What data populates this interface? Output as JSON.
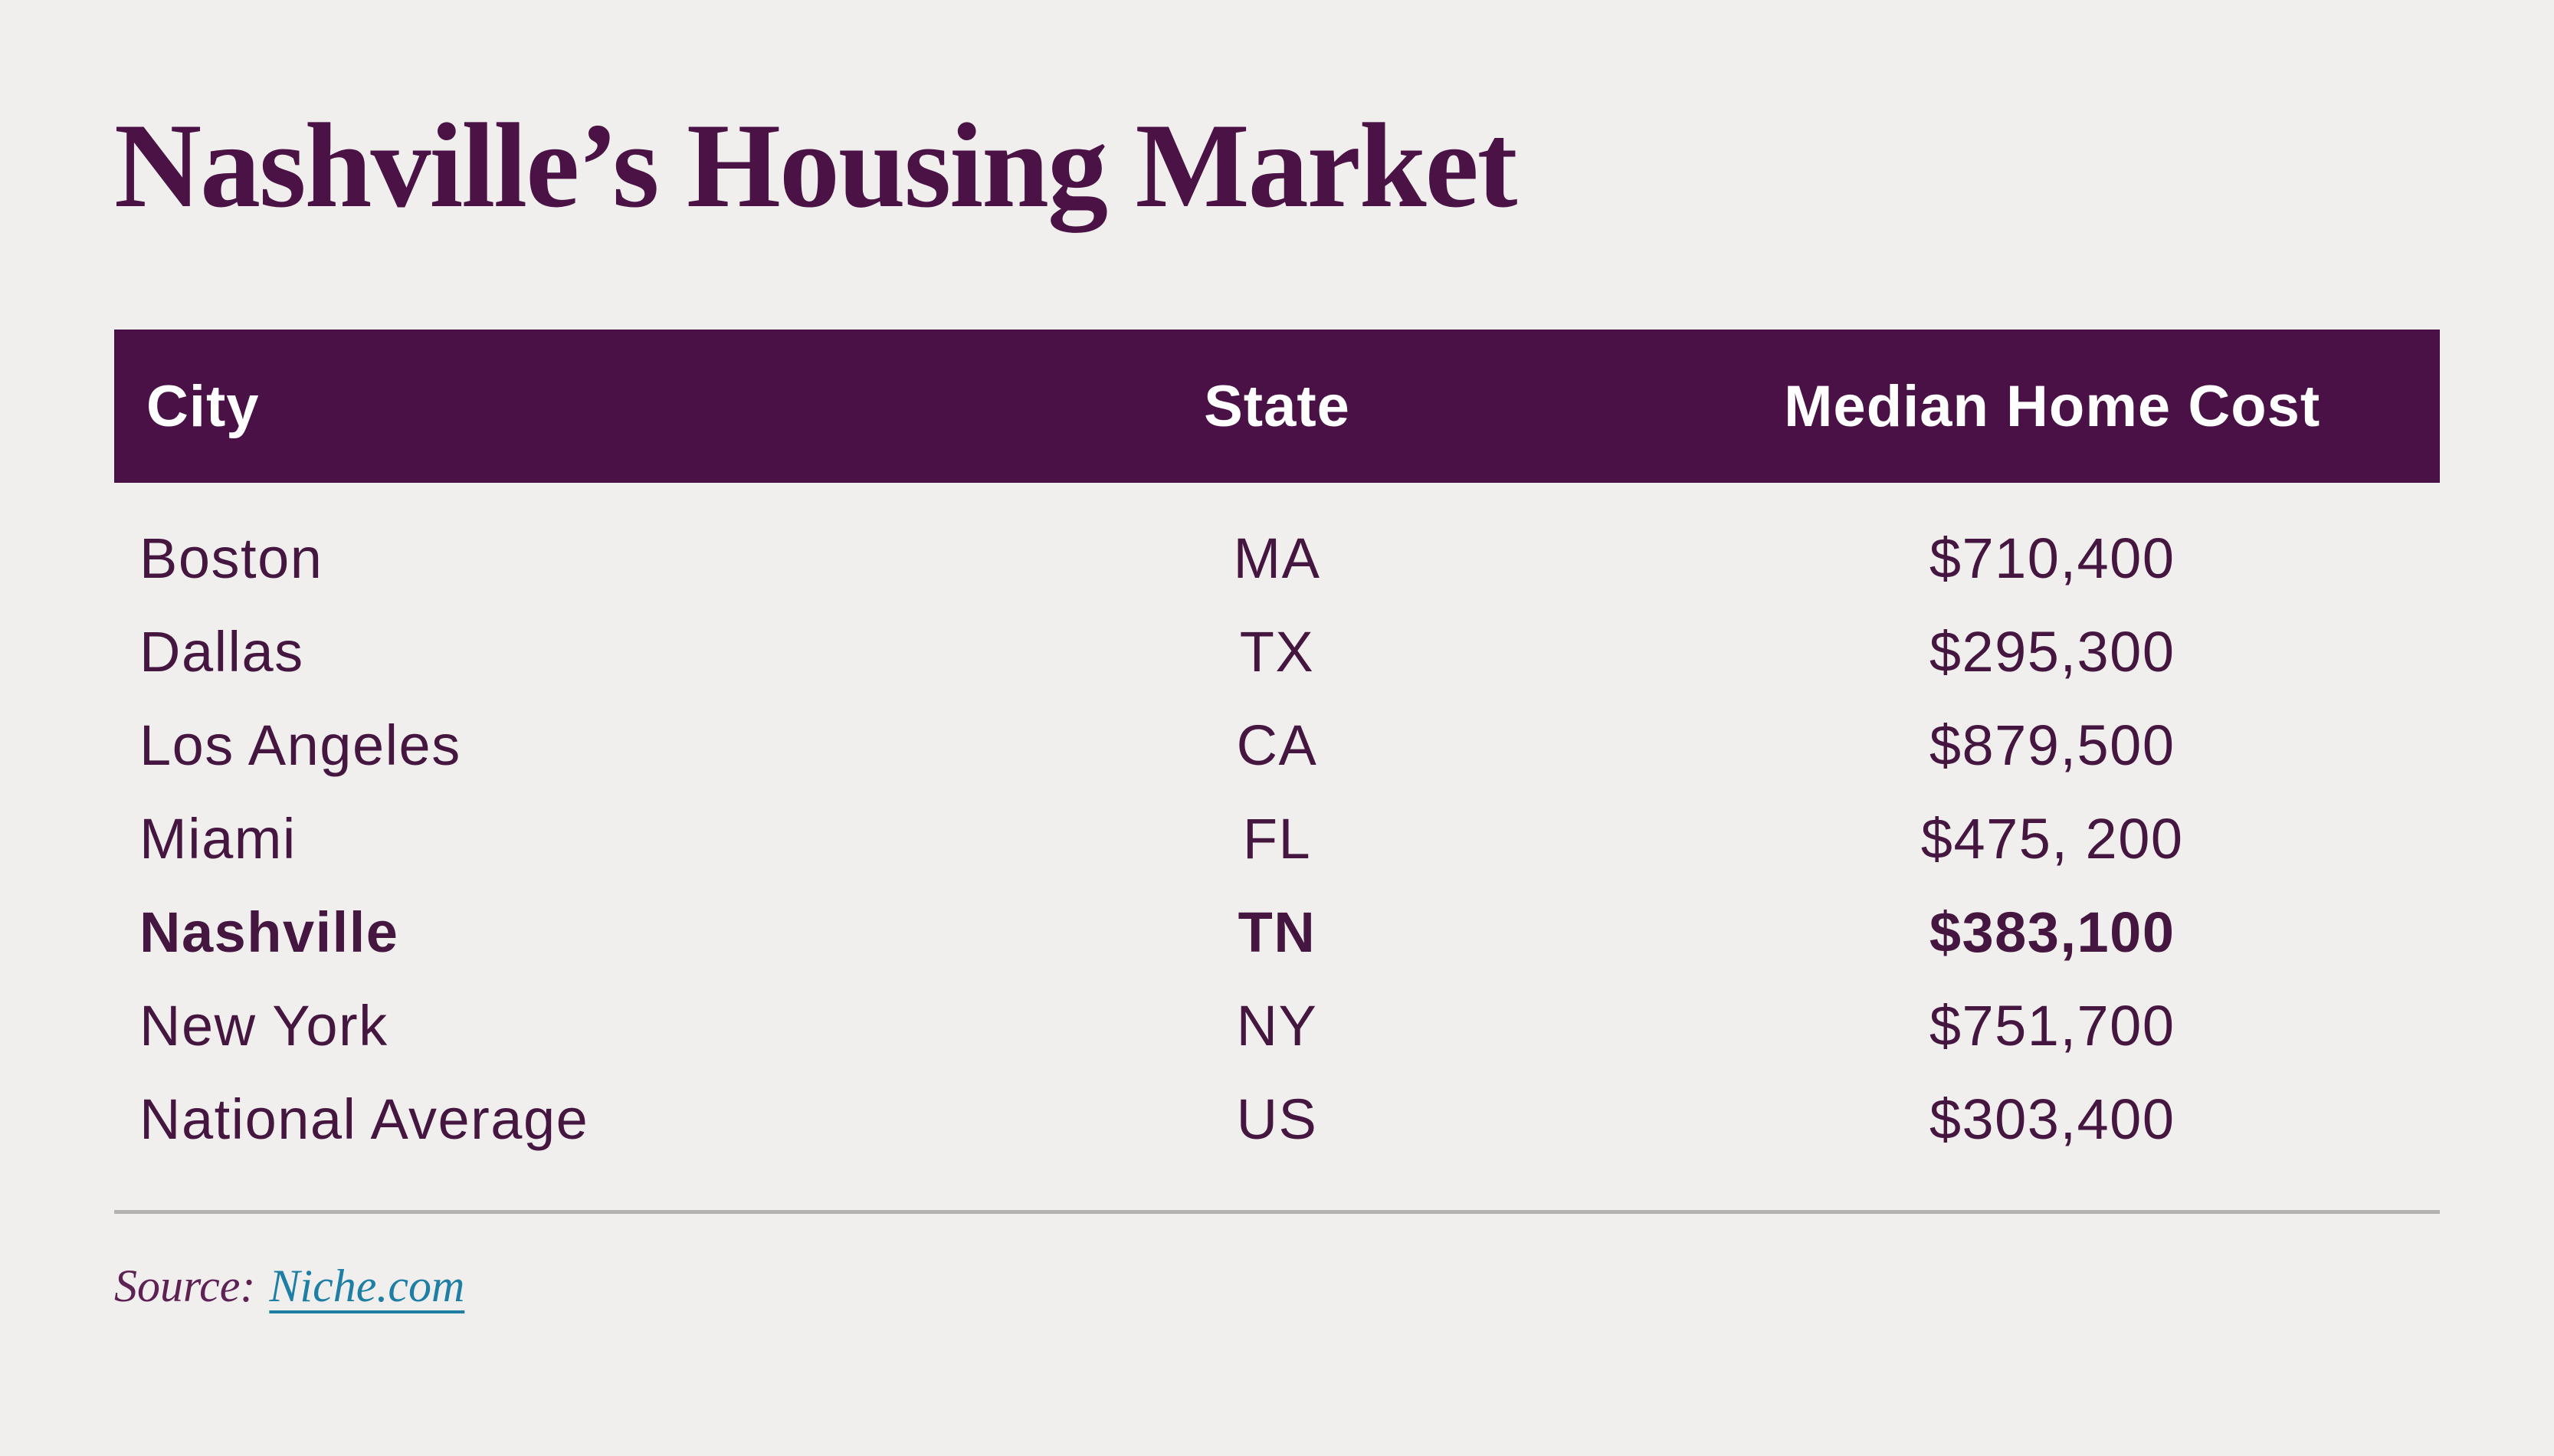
{
  "chart_data": {
    "type": "table",
    "title": "Nashville’s Housing Market",
    "columns": [
      "City",
      "State",
      "Median Home Cost"
    ],
    "rows": [
      {
        "city": "Boston",
        "state": "MA",
        "cost": "$710,400",
        "emphasis": false
      },
      {
        "city": "Dallas",
        "state": "TX",
        "cost": "$295,300",
        "emphasis": false
      },
      {
        "city": "Los Angeles",
        "state": "CA",
        "cost": "$879,500",
        "emphasis": false
      },
      {
        "city": "Miami",
        "state": "FL",
        "cost": "$475, 200",
        "emphasis": false
      },
      {
        "city": "Nashville",
        "state": "TN",
        "cost": "$383,100",
        "emphasis": true
      },
      {
        "city": "New York",
        "state": "NY",
        "cost": "$751,700",
        "emphasis": false
      },
      {
        "city": "National Average",
        "state": "US",
        "cost": "$303,400",
        "emphasis": false
      }
    ],
    "emphasized_row": "Nashville",
    "layout_hints": {
      "header_alignment": [
        "left",
        "center",
        "center"
      ],
      "cell_alignment": [
        "left",
        "center",
        "center"
      ],
      "gridlines": "none"
    }
  },
  "source": {
    "label": "Source:",
    "link_text": "Niche.com"
  },
  "colors": {
    "background": "#f0efed",
    "accent_purple": "#4a1147",
    "title_purple": "#4a1245",
    "row_text_purple": "#441640",
    "source_purple": "#5e2153",
    "link_teal": "#1f7ea4",
    "divider_gray": "#b4b2b0",
    "header_text": "#ffffff"
  }
}
